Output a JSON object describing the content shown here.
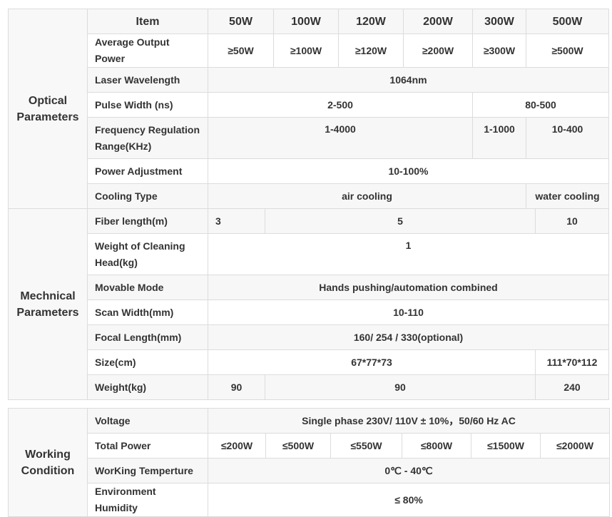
{
  "tables": [
    {
      "id": "optical",
      "section": "Optical Parameters",
      "cols": [
        111,
        169,
        92,
        91,
        91,
        97,
        75,
        116
      ],
      "rows": [
        {
          "label": "Item",
          "head": true,
          "cells": [
            {
              "t": "50W"
            },
            {
              "t": "100W"
            },
            {
              "t": "120W"
            },
            {
              "t": "200W"
            },
            {
              "t": "300W"
            },
            {
              "t": "500W"
            }
          ]
        },
        {
          "label": "Average Output Power",
          "cells": [
            {
              "t": "≥50W"
            },
            {
              "t": "≥100W"
            },
            {
              "t": "≥120W"
            },
            {
              "t": "≥200W"
            },
            {
              "t": "≥300W"
            },
            {
              "t": "≥500W"
            }
          ]
        },
        {
          "label": "Laser Wavelength",
          "cells": [
            {
              "t": "1064nm",
              "span": 6
            }
          ]
        },
        {
          "label": "Pulse Width (ns)",
          "cells": [
            {
              "t": "2-500",
              "span": 4
            },
            {
              "t": "80-500",
              "span": 2
            }
          ]
        },
        {
          "label": "Frequency Regulation Range(KHz)",
          "tall": true,
          "cells": [
            {
              "t": "1-4000",
              "span": 4
            },
            {
              "t": "1-1000"
            },
            {
              "t": "10-400"
            }
          ]
        },
        {
          "label": "Power Adjustment",
          "cells": [
            {
              "t": "10-100%",
              "span": 6
            }
          ]
        },
        {
          "label": "Cooling Type",
          "cells": [
            {
              "t": "air cooling",
              "span": 5
            },
            {
              "t": "water cooling"
            }
          ]
        }
      ]
    },
    {
      "id": "mechanical",
      "section": "Mechnical Parameters",
      "cols": [
        111,
        169,
        80,
        379,
        103
      ],
      "rows": [
        {
          "label": "Fiber length(m)",
          "cells": [
            {
              "t": "3",
              "left": true
            },
            {
              "t": "5"
            },
            {
              "t": "10"
            }
          ]
        },
        {
          "label": "Weight of Cleaning Head(kg)",
          "tall": true,
          "cells": [
            {
              "t": "1",
              "span": 3
            }
          ]
        },
        {
          "label": "Movable Mode",
          "cells": [
            {
              "t": "Hands pushing/automation combined",
              "span": 3
            }
          ]
        },
        {
          "label": "Scan Width(mm)",
          "cells": [
            {
              "t": "10-110",
              "span": 3
            }
          ]
        },
        {
          "label": "Focal Length(mm)",
          "cells": [
            {
              "t": "160/ 254 / 330(optional)",
              "span": 3
            }
          ]
        },
        {
          "label": "Size(cm)",
          "cells": [
            {
              "t": "67*77*73",
              "span": 2
            },
            {
              "t": "111*70*112"
            }
          ]
        },
        {
          "label": "Weight(kg)",
          "cells": [
            {
              "t": "90"
            },
            {
              "t": "90"
            },
            {
              "t": "240"
            }
          ]
        }
      ]
    },
    {
      "id": "working",
      "section": "Working Condition",
      "cols": [
        111,
        169,
        81,
        91,
        100,
        97,
        97,
        97
      ],
      "rows": [
        {
          "label": "Voltage",
          "cells": [
            {
              "t": "Single phase 230V/ 110V ± 10%，50/60 Hz AC",
              "span": 6
            }
          ]
        },
        {
          "label": "Total Power",
          "cells": [
            {
              "t": "≤200W"
            },
            {
              "t": "≤500W"
            },
            {
              "t": "≤550W"
            },
            {
              "t": "≤800W"
            },
            {
              "t": "≤1500W"
            },
            {
              "t": "≤2000W"
            }
          ]
        },
        {
          "label": "WorKing Temperture",
          "cells": [
            {
              "t": "0℃ - 40℃",
              "span": 6
            }
          ]
        },
        {
          "label": "Environment Humidity",
          "cells": [
            {
              "t": "≤ 80%",
              "span": 6
            }
          ]
        }
      ]
    }
  ]
}
